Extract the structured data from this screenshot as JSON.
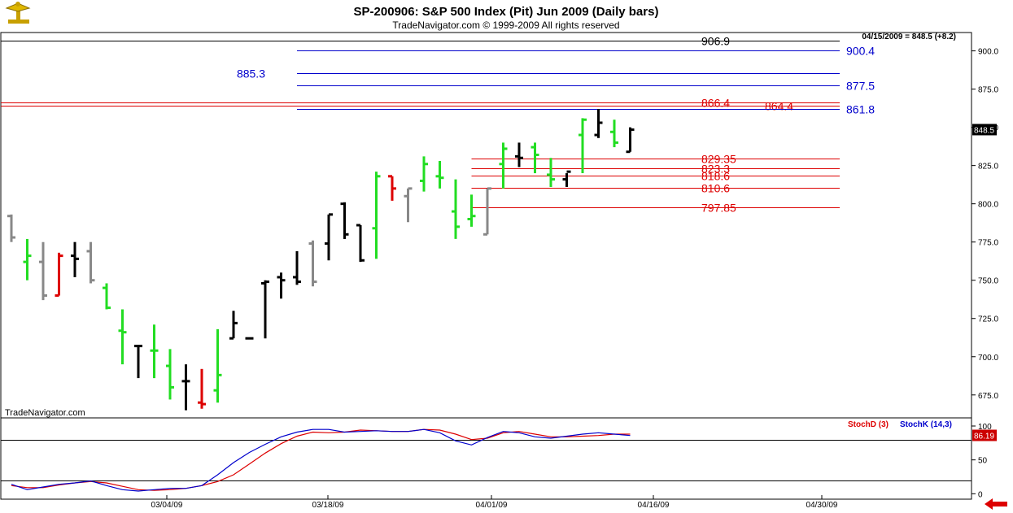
{
  "header": {
    "title": "SP-200906:  S&P 500 Index (Pit) Jun 2009  (Daily bars)",
    "subtitle": "TradeNavigator.com © 1999-2009 All rights reserved",
    "quote": "04/15/2009 = 848.5 (+8.2)"
  },
  "watermark": "TradeNavigator.com",
  "colors": {
    "up": "#22dd22",
    "down": "#dd0000",
    "inside": "#888888",
    "neutral": "#000000",
    "blue": "#0000cc",
    "red": "#dd0000",
    "last_box": "#000000",
    "stoch_box": "#cc0000"
  },
  "chart_data": [
    {
      "type": "ohlc",
      "ylim": [
        660,
        912
      ],
      "yticks": [
        "900.0",
        "875.0",
        "850.0",
        "825.0",
        "800.0",
        "775.0",
        "750.0",
        "725.0",
        "700.0",
        "675.0"
      ],
      "xticks": [
        "03/04/09",
        "03/18/09",
        "04/01/09",
        "04/16/09",
        "04/30/09"
      ],
      "last_value": "848.5",
      "bars": [
        {
          "o": 792,
          "h": 793,
          "l": 775,
          "c": 778,
          "col": "inside"
        },
        {
          "o": 762,
          "h": 777,
          "l": 750,
          "c": 766,
          "col": "up"
        },
        {
          "o": 762,
          "h": 775,
          "l": 737,
          "c": 740,
          "col": "inside"
        },
        {
          "o": 740,
          "h": 768,
          "l": 740,
          "c": 766,
          "col": "down"
        },
        {
          "o": 766,
          "h": 775,
          "l": 752,
          "c": 764,
          "col": "neutral"
        },
        {
          "o": 769,
          "h": 775,
          "l": 748,
          "c": 750,
          "col": "inside"
        },
        {
          "o": 745,
          "h": 748,
          "l": 731,
          "c": 732,
          "col": "up"
        },
        {
          "o": 717,
          "h": 731,
          "l": 695,
          "c": 716,
          "col": "up"
        },
        {
          "o": 707,
          "h": 707,
          "l": 686,
          "c": 707,
          "col": "neutral"
        },
        {
          "o": 704,
          "h": 721,
          "l": 686,
          "c": 704,
          "col": "up"
        },
        {
          "o": 694,
          "h": 705,
          "l": 672,
          "c": 680,
          "col": "up"
        },
        {
          "o": 684,
          "h": 695,
          "l": 665,
          "c": 684,
          "col": "neutral"
        },
        {
          "o": 670,
          "h": 692,
          "l": 666,
          "c": 669,
          "col": "down"
        },
        {
          "o": 678,
          "h": 718,
          "l": 670,
          "c": 688,
          "col": "up"
        },
        {
          "o": 712,
          "h": 730,
          "l": 712,
          "c": 722,
          "col": "neutral"
        },
        {
          "o": 712,
          "h": 712,
          "l": 712,
          "c": 712,
          "col": "neutral"
        },
        {
          "o": 748,
          "h": 750,
          "l": 712,
          "c": 749,
          "col": "neutral"
        },
        {
          "o": 752,
          "h": 755,
          "l": 738,
          "c": 750,
          "col": "neutral"
        },
        {
          "o": 752,
          "h": 769,
          "l": 747,
          "c": 749,
          "col": "neutral"
        },
        {
          "o": 774,
          "h": 776,
          "l": 746,
          "c": 749,
          "col": "inside"
        },
        {
          "o": 774,
          "h": 793,
          "l": 763,
          "c": 793,
          "col": "neutral"
        },
        {
          "o": 800,
          "h": 801,
          "l": 777,
          "c": 780,
          "col": "neutral"
        },
        {
          "o": 786,
          "h": 786,
          "l": 762,
          "c": 763,
          "col": "neutral"
        },
        {
          "o": 784,
          "h": 821,
          "l": 764,
          "c": 818,
          "col": "up"
        },
        {
          "o": 818,
          "h": 818,
          "l": 802,
          "c": 810,
          "col": "down"
        },
        {
          "o": 805,
          "h": 810,
          "l": 788,
          "c": 810,
          "col": "inside"
        },
        {
          "o": 815,
          "h": 831,
          "l": 808,
          "c": 826,
          "col": "up"
        },
        {
          "o": 818,
          "h": 828,
          "l": 810,
          "c": 817,
          "col": "up"
        },
        {
          "o": 795,
          "h": 816,
          "l": 777,
          "c": 785,
          "col": "up"
        },
        {
          "o": 790,
          "h": 806,
          "l": 785,
          "c": 792,
          "col": "up"
        },
        {
          "o": 780,
          "h": 810,
          "l": 780,
          "c": 810,
          "col": "inside"
        },
        {
          "o": 826,
          "h": 840,
          "l": 810,
          "c": 836,
          "col": "up"
        },
        {
          "o": 831,
          "h": 840,
          "l": 824,
          "c": 830,
          "col": "neutral"
        },
        {
          "o": 837,
          "h": 840,
          "l": 820,
          "c": 832,
          "col": "up"
        },
        {
          "o": 819,
          "h": 830,
          "l": 811,
          "c": 816,
          "col": "up"
        },
        {
          "o": 816,
          "h": 820,
          "l": 811,
          "c": 821,
          "col": "neutral"
        },
        {
          "o": 845,
          "h": 856,
          "l": 820,
          "c": 855,
          "col": "up"
        },
        {
          "o": 845,
          "h": 862,
          "l": 843,
          "c": 853,
          "col": "neutral"
        },
        {
          "o": 847,
          "h": 855,
          "l": 837,
          "c": 840,
          "col": "up"
        },
        {
          "o": 834,
          "h": 850,
          "l": 834,
          "c": 848.5,
          "col": "neutral"
        }
      ],
      "levels": [
        {
          "value": 906.9,
          "label": "906.9",
          "color": "neutral",
          "start": 0,
          "label_pos": "mid"
        },
        {
          "value": 900.4,
          "label": "900.4",
          "color": "blue",
          "start": 18,
          "label_pos": "right"
        },
        {
          "value": 885.3,
          "label": "885.3",
          "color": "blue",
          "start": 18,
          "label_pos": "left"
        },
        {
          "value": 877.5,
          "label": "877.5",
          "color": "blue",
          "start": 18,
          "label_pos": "right"
        },
        {
          "value": 866.4,
          "label": "866.4",
          "color": "red",
          "start": 0,
          "label_pos": "mid"
        },
        {
          "value": 864.4,
          "label": "864.4",
          "color": "red",
          "start": 0,
          "label_pos": "farmid"
        },
        {
          "value": 861.8,
          "label": "861.8",
          "color": "blue",
          "start": 18,
          "label_pos": "right"
        },
        {
          "value": 829.35,
          "label": "829.35",
          "color": "red",
          "start": 29,
          "label_pos": "mid"
        },
        {
          "value": 823.3,
          "label": "823.3",
          "color": "red",
          "start": 29,
          "label_pos": "mid"
        },
        {
          "value": 818.6,
          "label": "818.6",
          "color": "red",
          "start": 29,
          "label_pos": "mid"
        },
        {
          "value": 810.6,
          "label": "810.6",
          "color": "red",
          "start": 29,
          "label_pos": "mid"
        },
        {
          "value": 797.85,
          "label": "797.85",
          "color": "red",
          "start": 29,
          "label_pos": "mid"
        }
      ]
    },
    {
      "type": "line",
      "ylim": [
        -8,
        112
      ],
      "yticks": [
        "100",
        "50",
        "0"
      ],
      "hlines": [
        80,
        20
      ],
      "last_value": "86.19",
      "series": [
        {
          "name": "StochD (3)",
          "color": "red",
          "values": [
            12,
            9,
            9,
            13,
            16,
            18,
            16,
            11,
            6,
            5,
            6,
            8,
            12,
            18,
            28,
            44,
            60,
            74,
            85,
            91,
            90,
            91,
            94,
            93,
            92,
            92,
            95,
            94,
            88,
            80,
            82,
            90,
            92,
            88,
            84,
            84,
            85,
            86,
            88,
            88
          ]
        },
        {
          "name": "StochK (14,3)",
          "color": "blue",
          "values": [
            14,
            6,
            10,
            14,
            16,
            19,
            12,
            6,
            4,
            6,
            8,
            8,
            12,
            28,
            46,
            61,
            73,
            84,
            91,
            95,
            95,
            91,
            92,
            93,
            92,
            92,
            95,
            90,
            78,
            72,
            83,
            92,
            90,
            84,
            82,
            85,
            88,
            90,
            88,
            86
          ]
        }
      ]
    }
  ]
}
